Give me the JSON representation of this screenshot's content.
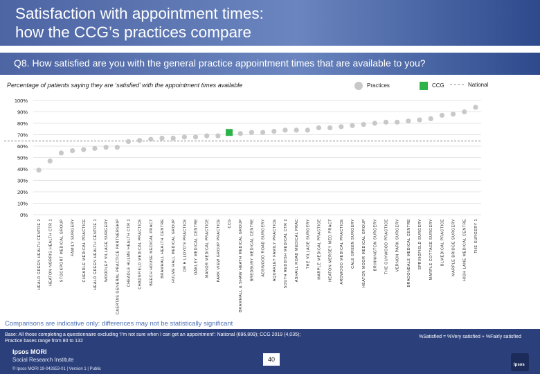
{
  "header": {
    "title_line1": "Satisfaction with appointment times:",
    "title_line2": "how the CCG’s practices compare"
  },
  "question": "Q8. How satisfied are you with the general practice appointment times that are available to you?",
  "subtitle": "Percentage of patients saying they are ‘satisfied’ with the appointment times available",
  "legend": {
    "practices": "Practices",
    "ccg": "CCG",
    "national": "National"
  },
  "note": "Comparisons are indicative only: differences may not be statistically significant",
  "footer": {
    "base_line1": "Base: All those completing a questionnaire excluding ‘I’m not sure when I can get an appointment’: National (696,809); CCG 2019 (4,035);",
    "base_line2": "Practice bases range from 80 to 132",
    "definition": "%Satisfied = %Very satisfied + %Fairly satisfied",
    "page_number": "40",
    "brand_name": "Ipsos MORI",
    "brand_unit": "Social Research Institute",
    "meta": "© Ipsos MORI     19-042653-01 | Version 1 | Public"
  },
  "chart_data": {
    "type": "scatter",
    "title": "Q8. How satisfied are you with the general practice appointment times that are available to you?",
    "xlabel": "",
    "ylabel": "Percentage of patients saying they are ‘satisfied’ with the appointment times available",
    "ylim": [
      0,
      100
    ],
    "yticks": [
      "0%",
      "10%",
      "20%",
      "30%",
      "40%",
      "50%",
      "60%",
      "70%",
      "80%",
      "90%",
      "100%"
    ],
    "national_value": 64.5,
    "colors": {
      "practice": "#c8c8c8",
      "ccg": "#2db34a",
      "national": "#888888",
      "grid": "#e4e4e4"
    },
    "categories": [
      "HEALD GREEN HEALTH CENTRE 2",
      "HEATON NORRIS HEALTH CTR 1",
      "STOCKPORT MEDICAL GROUP",
      "FAMILY SURGERY",
      "CHEADLE MEDICAL PRACTICE",
      "HEALD GREEN HEALTH CENTRE 1",
      "WOODLEY VILLAGE SURGERY",
      "CAERTAS GENERAL PRACTICE PARTNERSHIP",
      "CHEADLE HULME HEALTH CTR 2",
      "CHADSFIELD MEDICAL PRACTICE",
      "BEECH HOUSE MEDICAL PRACT",
      "BRAMHALL HEALTH CENTRE",
      "HULME HALL MEDICAL GROUP",
      "DR H LLOYD'S PRACTICE",
      "OAKLEY MEDICAL CENTRE",
      "MANOR MEDICAL PRACTICE",
      "PARK VIEW GROUP PRACTICE",
      "CCG",
      "BRAMHALL & SHAW HEATH MEDICAL GROUP",
      "BREDBURY MEDICAL CENTRE",
      "ADSWOOD ROAD SURGERY",
      "AQUARLEY FAMILY PRACTICE",
      "SOUTH REDDISH MEDICAL CTR 2",
      "ASHALL ROAD MEDICAL PRAC",
      "THE VILLAGE SURGERY",
      "MARPLE MEDICAL PRACTICE",
      "HEATON MERSEY MED PRACT",
      "ARDWOOD MEDICAL PRACTICE",
      "CALE GREEN SURGERY",
      "HEATON MOOR MEDICAL GROUP",
      "BRINNINGTON SURGERY",
      "THE GUYWOOD PRACTICE",
      "VERNON PARK SURGERY",
      "BRADONDALE MEDICAL CENTRE",
      "SPRINGFIELD SURGERY",
      "MARPLE COTTAGE SURGERY",
      "BLMEDICAL PRACTICE",
      "MARPLE BRIDGE SURGERY",
      "HIGH LANE MEDICAL CENTRE",
      "THE SURGERY 1"
    ],
    "values": [
      39,
      47,
      54,
      56,
      57,
      58,
      59,
      59,
      64,
      65,
      66,
      67,
      67,
      68,
      68,
      69,
      69,
      72,
      71,
      72,
      72,
      73,
      74,
      74,
      74,
      76,
      76,
      77,
      78,
      79,
      80,
      81,
      81,
      82,
      83,
      84,
      87,
      88,
      90,
      94
    ]
  }
}
